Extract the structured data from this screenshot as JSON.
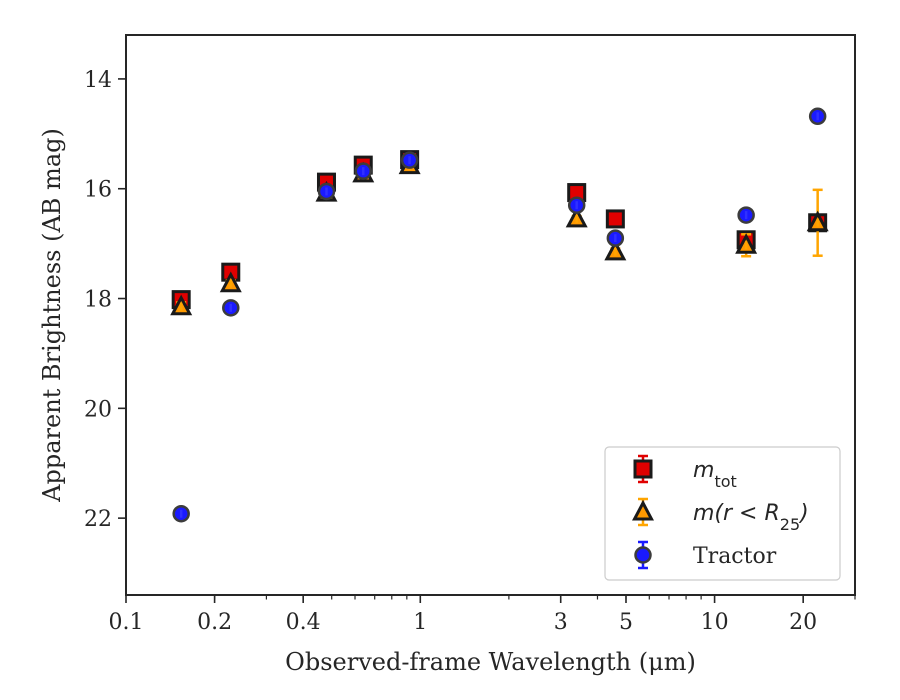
{
  "chart_data": {
    "type": "scatter",
    "title": "",
    "xlabel": "Observed-frame Wavelength (μm)",
    "ylabel": "Apparent Brightness (AB mag)",
    "xscale": "log",
    "xlim": [
      0.1,
      30
    ],
    "ylim": [
      23.4,
      13.2
    ],
    "y_inverted": true,
    "x_tick_labels": [
      "0.1",
      "0.2",
      "0.4",
      "1",
      "3",
      "5",
      "10",
      "20"
    ],
    "x_ticks": [
      0.1,
      0.2,
      0.4,
      1,
      3,
      5,
      10,
      20
    ],
    "y_ticks": [
      14,
      16,
      18,
      20,
      22
    ],
    "y_tick_labels": [
      "14",
      "16",
      "18",
      "20",
      "22"
    ],
    "legend_position": "lower right",
    "grid": false,
    "series": [
      {
        "key": "mtot",
        "marker": "square",
        "color": "#e00000",
        "errcolor": "#e00000",
        "points": [
          {
            "x": 0.154,
            "y": 18.02,
            "err": 0.08
          },
          {
            "x": 0.227,
            "y": 17.52,
            "err": 0.06
          },
          {
            "x": 0.48,
            "y": 15.88,
            "err": 0.04
          },
          {
            "x": 0.64,
            "y": 15.57,
            "err": 0.04
          },
          {
            "x": 0.92,
            "y": 15.47,
            "err": 0.04
          },
          {
            "x": 3.4,
            "y": 16.07,
            "err": 0.05
          },
          {
            "x": 4.6,
            "y": 16.55,
            "err": 0.06
          },
          {
            "x": 12.8,
            "y": 16.93,
            "err": 0.12
          },
          {
            "x": 22.4,
            "y": 16.62,
            "err": 0.1
          }
        ]
      },
      {
        "key": "mr25",
        "marker": "triangle",
        "color": "#ff9900",
        "errcolor": "#ffa500",
        "points": [
          {
            "x": 0.154,
            "y": 18.15,
            "err": 0.08
          },
          {
            "x": 0.227,
            "y": 17.73,
            "err": 0.06
          },
          {
            "x": 0.48,
            "y": 16.08,
            "err": 0.04
          },
          {
            "x": 0.64,
            "y": 15.73,
            "err": 0.04
          },
          {
            "x": 0.92,
            "y": 15.58,
            "err": 0.04
          },
          {
            "x": 3.4,
            "y": 16.55,
            "err": 0.05
          },
          {
            "x": 4.6,
            "y": 17.15,
            "err": 0.06
          },
          {
            "x": 12.8,
            "y": 17.03,
            "err": 0.2
          },
          {
            "x": 22.4,
            "y": 16.62,
            "err": 0.6
          }
        ]
      },
      {
        "key": "tractor",
        "marker": "circle",
        "color": "#1a1aff",
        "errcolor": "#1a1aff",
        "points": [
          {
            "x": 0.154,
            "y": 21.92,
            "err": 0.08
          },
          {
            "x": 0.227,
            "y": 18.17,
            "err": 0.06
          },
          {
            "x": 0.48,
            "y": 16.05,
            "err": 0.03
          },
          {
            "x": 0.64,
            "y": 15.68,
            "err": 0.03
          },
          {
            "x": 0.92,
            "y": 15.48,
            "err": 0.03
          },
          {
            "x": 3.4,
            "y": 16.3,
            "err": 0.05
          },
          {
            "x": 4.6,
            "y": 16.9,
            "err": 0.06
          },
          {
            "x": 12.8,
            "y": 16.48,
            "err": 0.06
          },
          {
            "x": 22.4,
            "y": 14.68,
            "err": 0.06
          }
        ]
      }
    ],
    "legend": [
      {
        "key": "mtot",
        "main": "m",
        "sub": "tot",
        "post": ""
      },
      {
        "key": "mr25",
        "main": "m(r < R",
        "sub": "25",
        "post": ")"
      },
      {
        "key": "tractor",
        "main": "Tractor",
        "sub": "",
        "post": ""
      }
    ]
  }
}
